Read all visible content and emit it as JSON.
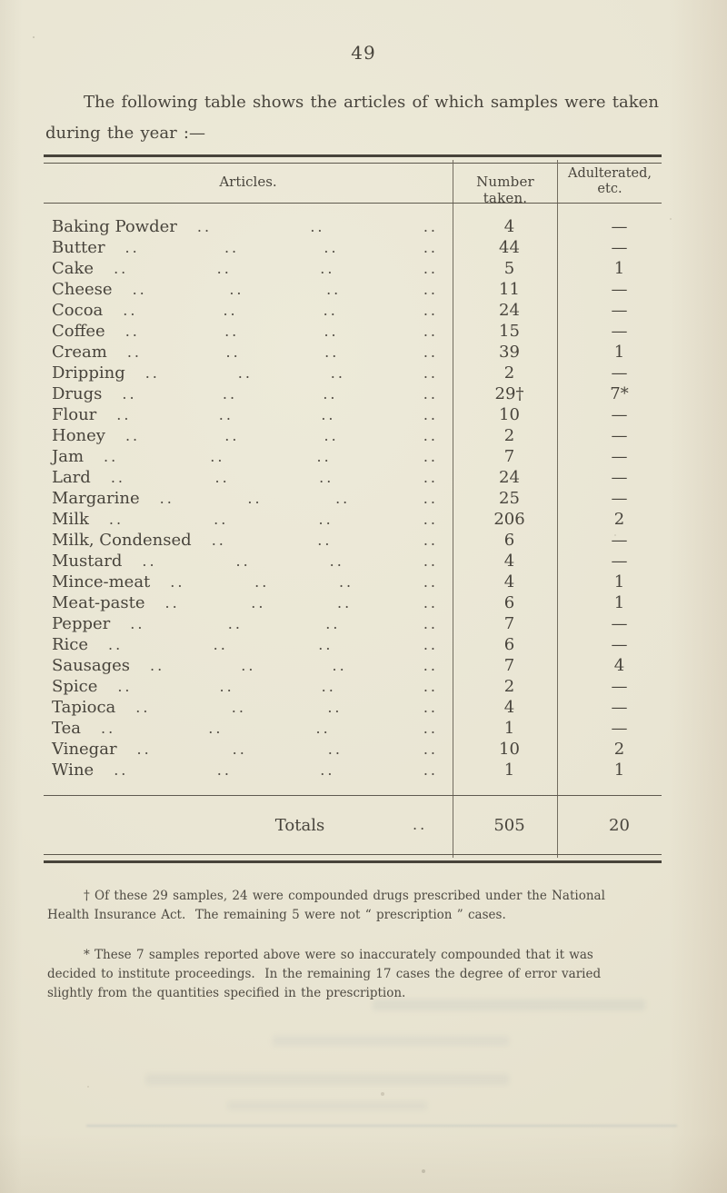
{
  "page": {
    "number": "49"
  },
  "intro": {
    "lines": [
      "The following table shows the articles of which samples were taken",
      "during the year :—"
    ]
  },
  "table": {
    "headers": {
      "articles": "Articles.",
      "number_taken": "Number taken.",
      "adulterated_line1": "Adulterated,",
      "adulterated_line2": "etc."
    },
    "leader_dots": "..",
    "rows": [
      {
        "article": "Baking Powder",
        "number": "4",
        "adulterated": "—"
      },
      {
        "article": "Butter",
        "number": "44",
        "adulterated": "—"
      },
      {
        "article": "Cake",
        "number": "5",
        "adulterated": "1"
      },
      {
        "article": "Cheese",
        "number": "11",
        "adulterated": "—"
      },
      {
        "article": "Cocoa",
        "number": "24",
        "adulterated": "—"
      },
      {
        "article": "Coffee",
        "number": "15",
        "adulterated": "—"
      },
      {
        "article": "Cream",
        "number": "39",
        "adulterated": "1"
      },
      {
        "article": "Dripping",
        "number": "2",
        "adulterated": "—"
      },
      {
        "article": "Drugs",
        "number": "29†",
        "adulterated": "7*"
      },
      {
        "article": "Flour",
        "number": "10",
        "adulterated": "—"
      },
      {
        "article": "Honey",
        "number": "2",
        "adulterated": "—"
      },
      {
        "article": "Jam",
        "number": "7",
        "adulterated": "—"
      },
      {
        "article": "Lard",
        "number": "24",
        "adulterated": "—"
      },
      {
        "article": "Margarine",
        "number": "25",
        "adulterated": "—"
      },
      {
        "article": "Milk",
        "number": "206",
        "adulterated": "2"
      },
      {
        "article": "Milk, Condensed",
        "number": "6",
        "adulterated": "—"
      },
      {
        "article": "Mustard",
        "number": "4",
        "adulterated": "—"
      },
      {
        "article": "Mince-meat",
        "number": "4",
        "adulterated": "1"
      },
      {
        "article": "Meat-paste",
        "number": "6",
        "adulterated": "1"
      },
      {
        "article": "Pepper",
        "number": "7",
        "adulterated": "—"
      },
      {
        "article": "Rice",
        "number": "6",
        "adulterated": "—"
      },
      {
        "article": "Sausages",
        "number": "7",
        "adulterated": "4"
      },
      {
        "article": "Spice",
        "number": "2",
        "adulterated": "—"
      },
      {
        "article": "Tapioca",
        "number": "4",
        "adulterated": "—"
      },
      {
        "article": "Tea",
        "number": "1",
        "adulterated": "—"
      },
      {
        "article": "Vinegar",
        "number": "10",
        "adulterated": "2"
      },
      {
        "article": "Wine",
        "number": "1",
        "adulterated": "1"
      }
    ],
    "totals": {
      "label": "Totals",
      "number": "505",
      "adulterated": "20"
    }
  },
  "footnotes": {
    "dagger_lines": [
      "† Of these 29 samples, 24 were compounded drugs prescribed under the National",
      "Health Insurance Act.  The remaining 5 were not “ prescription ” cases."
    ],
    "asterisk_lines": [
      "* These 7 samples reported above were so inaccurately compounded that it was",
      "decided to institute proceedings.  In the remaining 17 cases the degree of error varied",
      "slightly from the quantities specified in the prescription."
    ]
  }
}
